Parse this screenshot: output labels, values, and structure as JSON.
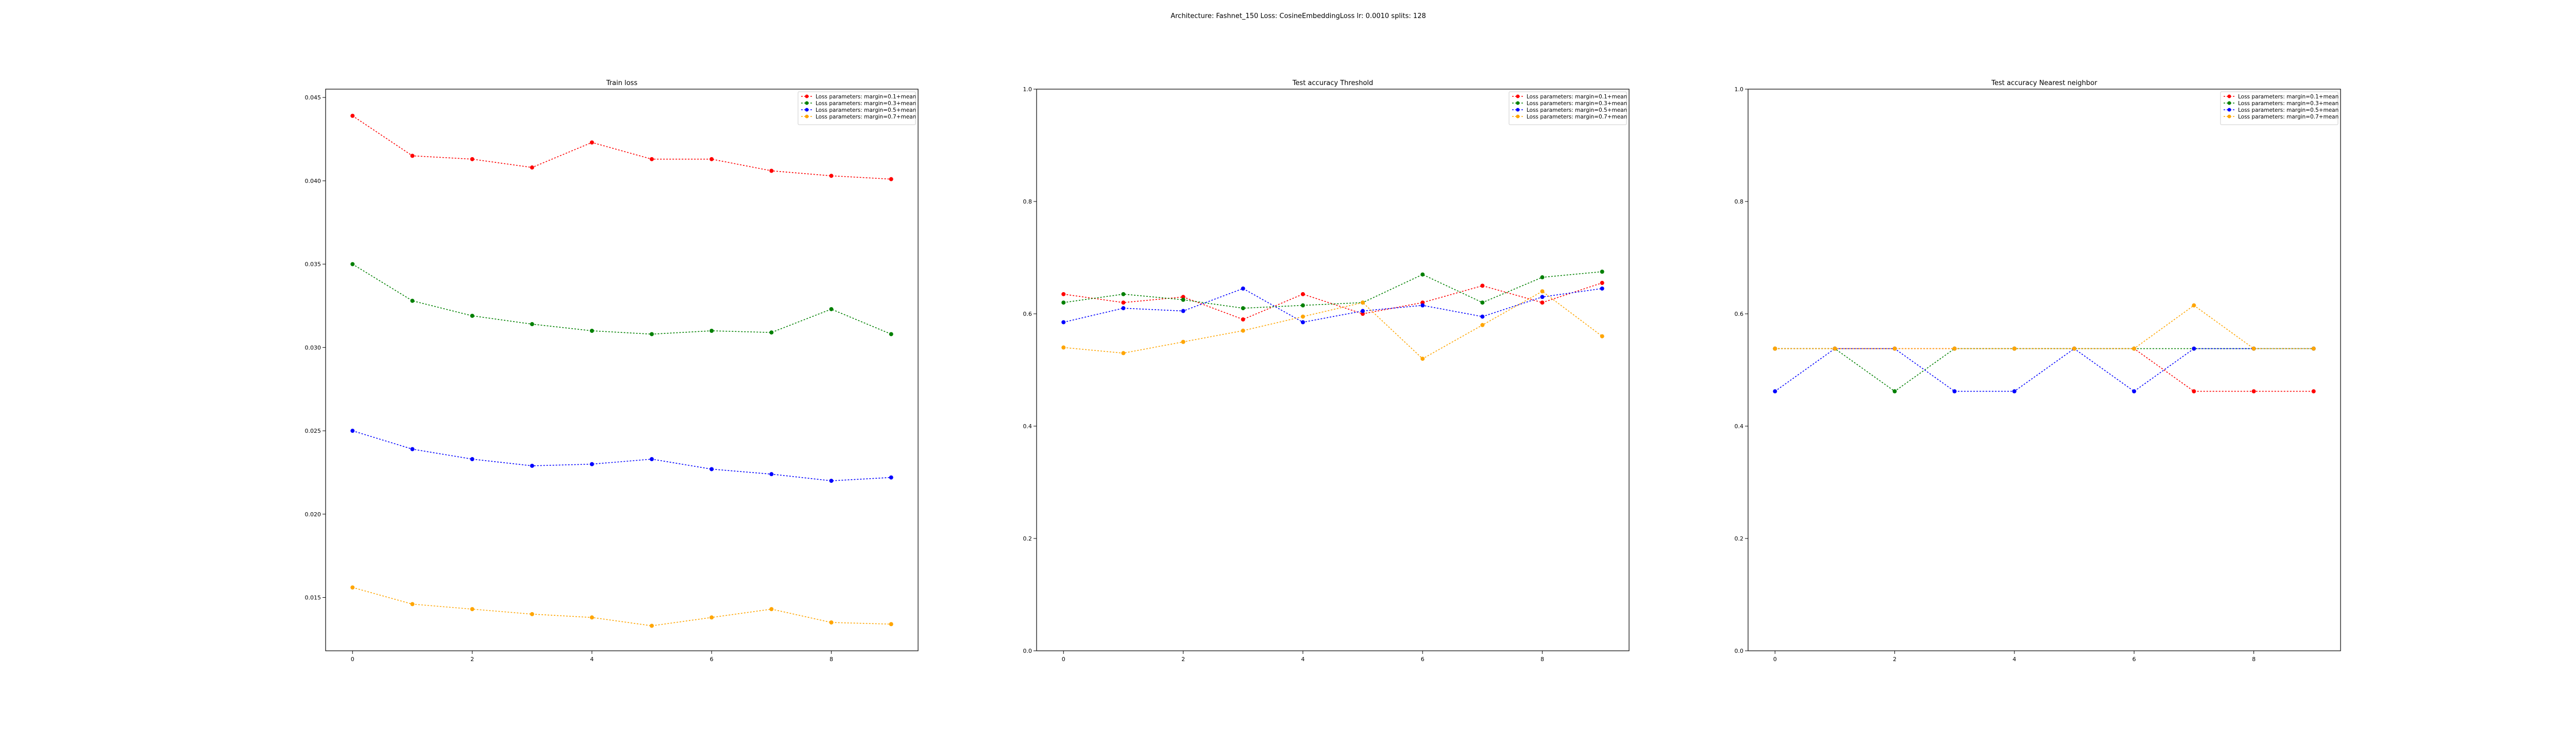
{
  "figure_title": "Architecture: Fashnet_150 Loss: CosineEmbeddingLoss lr: 0.0010 splits: 128",
  "colors": {
    "red": "#ff0000",
    "green": "#008000",
    "blue": "#0000ff",
    "orange": "#ffa500"
  },
  "chart_data": [
    {
      "type": "line",
      "title": "Train loss",
      "xlabel": "",
      "ylabel": "",
      "x": [
        0,
        1,
        2,
        3,
        4,
        5,
        6,
        7,
        8,
        9
      ],
      "xticks": [
        0,
        2,
        4,
        6,
        8
      ],
      "xtick_labels": [
        "0",
        "2",
        "4",
        "6",
        "8"
      ],
      "xlim": [
        -0.45,
        9.45
      ],
      "ylim": [
        0.0118,
        0.0455
      ],
      "yticks": [
        0.015,
        0.02,
        0.025,
        0.03,
        0.035,
        0.04,
        0.045
      ],
      "ytick_labels": [
        "0.015",
        "0.020",
        "0.025",
        "0.030",
        "0.035",
        "0.040",
        "0.045"
      ],
      "grid": false,
      "legend_position": "top-right",
      "series": [
        {
          "name": "Loss parameters: margin=0.1+mean",
          "color": "red",
          "marker": "circle",
          "values": [
            0.0439,
            0.0415,
            0.0413,
            0.0408,
            0.0423,
            0.0413,
            0.0413,
            0.0406,
            0.0403,
            0.0401
          ]
        },
        {
          "name": "Loss parameters: margin=0.3+mean",
          "color": "green",
          "marker": "circle",
          "values": [
            0.035,
            0.0328,
            0.0319,
            0.0314,
            0.031,
            0.0308,
            0.031,
            0.0309,
            0.0323,
            0.0308
          ]
        },
        {
          "name": "Loss parameters: margin=0.5+mean",
          "color": "blue",
          "marker": "circle",
          "values": [
            0.025,
            0.0239,
            0.0233,
            0.0229,
            0.023,
            0.0233,
            0.0227,
            0.0224,
            0.022,
            0.0222
          ]
        },
        {
          "name": "Loss parameters: margin=0.7+mean",
          "color": "orange",
          "marker": "circle",
          "values": [
            0.0156,
            0.0146,
            0.0143,
            0.014,
            0.0138,
            0.0133,
            0.0138,
            0.0143,
            0.0135,
            0.0134
          ]
        }
      ]
    },
    {
      "type": "line",
      "title": "Test accuracy Threshold",
      "xlabel": "",
      "ylabel": "",
      "x": [
        0,
        1,
        2,
        3,
        4,
        5,
        6,
        7,
        8,
        9
      ],
      "xticks": [
        0,
        2,
        4,
        6,
        8
      ],
      "xtick_labels": [
        "0",
        "2",
        "4",
        "6",
        "8"
      ],
      "xlim": [
        -0.45,
        9.45
      ],
      "ylim": [
        0.0,
        1.0
      ],
      "yticks": [
        0.0,
        0.2,
        0.4,
        0.6,
        0.8,
        1.0
      ],
      "ytick_labels": [
        "0.0",
        "0.2",
        "0.4",
        "0.6",
        "0.8",
        "1.0"
      ],
      "grid": false,
      "legend_position": "top-right",
      "series": [
        {
          "name": "Loss parameters: margin=0.1+mean",
          "color": "red",
          "marker": "circle",
          "values": [
            0.635,
            0.62,
            0.63,
            0.59,
            0.635,
            0.6,
            0.62,
            0.65,
            0.62,
            0.655
          ]
        },
        {
          "name": "Loss parameters: margin=0.3+mean",
          "color": "green",
          "marker": "circle",
          "values": [
            0.62,
            0.635,
            0.625,
            0.61,
            0.615,
            0.62,
            0.67,
            0.62,
            0.665,
            0.675
          ]
        },
        {
          "name": "Loss parameters: margin=0.5+mean",
          "color": "blue",
          "marker": "circle",
          "values": [
            0.585,
            0.61,
            0.605,
            0.645,
            0.585,
            0.605,
            0.615,
            0.595,
            0.63,
            0.645
          ]
        },
        {
          "name": "Loss parameters: margin=0.7+mean",
          "color": "orange",
          "marker": "circle",
          "values": [
            0.54,
            0.53,
            0.55,
            0.57,
            0.595,
            0.62,
            0.52,
            0.58,
            0.64,
            0.56
          ]
        }
      ]
    },
    {
      "type": "line",
      "title": "Test accuracy Nearest neighbor",
      "xlabel": "",
      "ylabel": "",
      "x": [
        0,
        1,
        2,
        3,
        4,
        5,
        6,
        7,
        8,
        9
      ],
      "xticks": [
        0,
        2,
        4,
        6,
        8
      ],
      "xtick_labels": [
        "0",
        "2",
        "4",
        "6",
        "8"
      ],
      "xlim": [
        -0.45,
        9.45
      ],
      "ylim": [
        0.0,
        1.0
      ],
      "yticks": [
        0.0,
        0.2,
        0.4,
        0.6,
        0.8,
        1.0
      ],
      "ytick_labels": [
        "0.0",
        "0.2",
        "0.4",
        "0.6",
        "0.8",
        "1.0"
      ],
      "grid": false,
      "legend_position": "top-right",
      "series": [
        {
          "name": "Loss parameters: margin=0.1+mean",
          "color": "red",
          "marker": "circle",
          "values": [
            0.538,
            0.538,
            0.538,
            0.538,
            0.538,
            0.538,
            0.538,
            0.462,
            0.462,
            0.462
          ]
        },
        {
          "name": "Loss parameters: margin=0.3+mean",
          "color": "green",
          "marker": "circle",
          "values": [
            0.538,
            0.538,
            0.462,
            0.538,
            0.538,
            0.538,
            0.538,
            0.538,
            0.538,
            0.538
          ]
        },
        {
          "name": "Loss parameters: margin=0.5+mean",
          "color": "blue",
          "marker": "circle",
          "values": [
            0.462,
            0.538,
            0.538,
            0.462,
            0.462,
            0.538,
            0.462,
            0.538,
            0.538,
            0.538
          ]
        },
        {
          "name": "Loss parameters: margin=0.7+mean",
          "color": "orange",
          "marker": "circle",
          "values": [
            0.538,
            0.538,
            0.538,
            0.538,
            0.538,
            0.538,
            0.538,
            0.615,
            0.538,
            0.538
          ]
        }
      ]
    }
  ]
}
